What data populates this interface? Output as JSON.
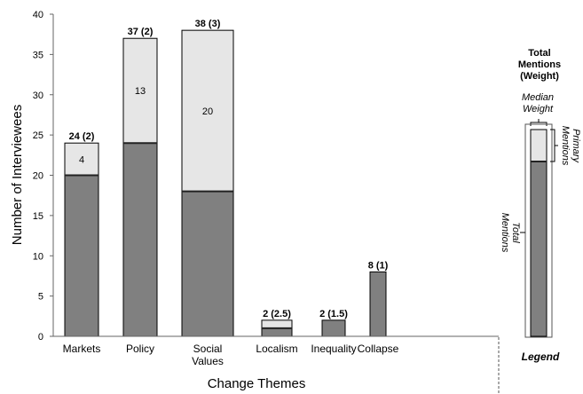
{
  "colors": {
    "total": "#808080",
    "primary": "#e6e6e6",
    "outline": "#000000",
    "axis": "#666666",
    "bar_divider": "#222222"
  },
  "chart_data": {
    "type": "bar",
    "stacked": true,
    "xlabel": "Change Themes",
    "ylabel": "Number of Interviewees",
    "ylim": [
      0,
      40
    ],
    "yticks": [
      0,
      5,
      10,
      15,
      20,
      25,
      30,
      35,
      40
    ],
    "grid": false,
    "categories": [
      {
        "lines": [
          "Markets"
        ],
        "total": 24,
        "primary": 4,
        "weight": "2",
        "label": "24 (2)",
        "primary_label": "4"
      },
      {
        "lines": [
          "Policy"
        ],
        "total": 37,
        "primary": 13,
        "weight": "2",
        "label": "37 (2)",
        "primary_label": "13"
      },
      {
        "lines": [
          "Social",
          "Values"
        ],
        "total": 38,
        "primary": 20,
        "weight": "3",
        "label": "38 (3)",
        "primary_label": "20"
      },
      {
        "lines": [
          "Localism"
        ],
        "total": 2,
        "primary": 1,
        "weight": "2.5",
        "label": "2 (2.5)",
        "primary_label": ""
      },
      {
        "lines": [
          "Inequality"
        ],
        "total": 2,
        "primary": 0,
        "weight": "1.5",
        "label": "2 (1.5)",
        "primary_label": ""
      },
      {
        "lines": [
          "Collapse"
        ],
        "total": 8,
        "primary": 0,
        "weight": "1",
        "label": "8 (1)",
        "primary_label": ""
      }
    ],
    "legend": {
      "title_lines": [
        "Total",
        "Mentions",
        "(Weight)"
      ],
      "median_weight_lines": [
        "Median",
        "Weight"
      ],
      "primary_mentions_lines": [
        "Primary",
        "Mentions"
      ],
      "total_mentions_lines": [
        "Total",
        "Mentions"
      ],
      "footer": "Legend"
    }
  }
}
